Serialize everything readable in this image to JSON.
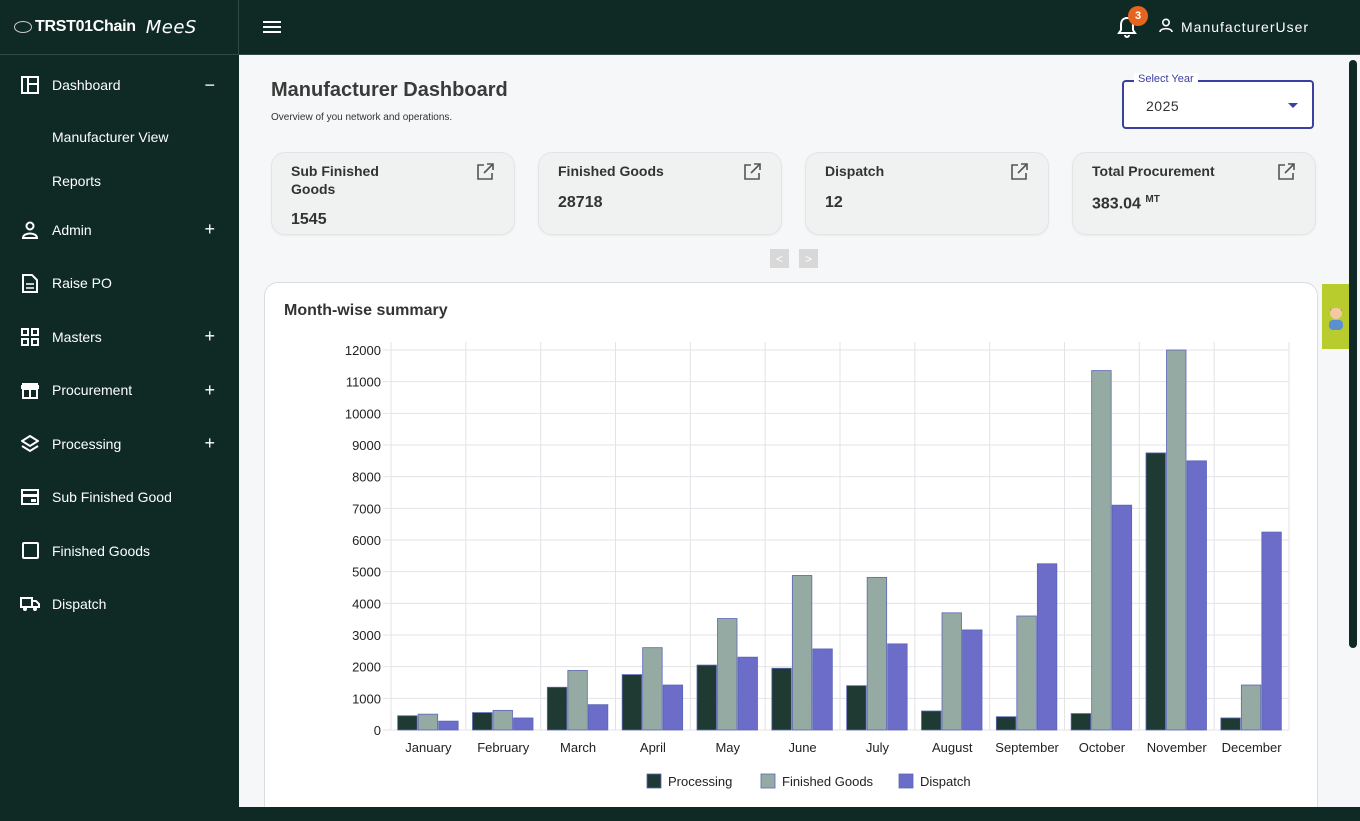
{
  "brand": {
    "logo_text": "TRST01Chain",
    "app_name": "MeeS"
  },
  "sidebar": {
    "items": [
      {
        "label": "Dashboard",
        "icon": "dashboard-icon",
        "toggle": "−"
      },
      {
        "label": "Manufacturer View"
      },
      {
        "label": "Reports"
      },
      {
        "label": "Admin",
        "icon": "person-icon",
        "toggle": "+"
      },
      {
        "label": "Raise PO",
        "icon": "document-icon"
      },
      {
        "label": "Masters",
        "icon": "grid-icon",
        "toggle": "+"
      },
      {
        "label": "Procurement",
        "icon": "store-icon",
        "toggle": "+"
      },
      {
        "label": "Processing",
        "icon": "layers-icon",
        "toggle": "+"
      },
      {
        "label": "Sub Finished Good",
        "icon": "card-icon"
      },
      {
        "label": "Finished Goods",
        "icon": "square-icon"
      },
      {
        "label": "Dispatch",
        "icon": "truck-icon"
      }
    ]
  },
  "topbar": {
    "notification_count": "3",
    "username": "ManufacturerUser"
  },
  "page": {
    "title": "Manufacturer Dashboard",
    "subtitle": "Overview of you network and operations.",
    "year_select": {
      "label": "Select Year",
      "value": "2025"
    }
  },
  "cards": [
    {
      "title": "Sub Finished Goods",
      "value": "1545",
      "unit": ""
    },
    {
      "title": "Finished Goods",
      "value": "28718",
      "unit": ""
    },
    {
      "title": "Dispatch",
      "value": "12",
      "unit": ""
    },
    {
      "title": "Total Procurement",
      "value": "383.04",
      "unit": "MT"
    }
  ],
  "pager": {
    "prev": "<",
    "next": ">"
  },
  "chart": {
    "title": "Month-wise summary"
  },
  "colors": {
    "processing": "#1e3a32",
    "finished_goods": "#95aaa3",
    "dispatch": "#6b6dc8",
    "accent": "#3b3f9e",
    "sidebar": "#0f2a24"
  },
  "chart_data": {
    "type": "bar",
    "categories": [
      "January",
      "February",
      "March",
      "April",
      "May",
      "June",
      "July",
      "August",
      "September",
      "October",
      "November",
      "December"
    ],
    "series": [
      {
        "name": "Processing",
        "values": [
          450,
          550,
          1350,
          1750,
          2050,
          1950,
          1400,
          600,
          420,
          520,
          8750,
          380
        ]
      },
      {
        "name": "Finished Goods",
        "values": [
          500,
          620,
          1880,
          2600,
          3520,
          4880,
          4820,
          3700,
          3600,
          11350,
          12500,
          1420
        ]
      },
      {
        "name": "Dispatch",
        "values": [
          280,
          380,
          800,
          1420,
          2300,
          2560,
          2720,
          3160,
          5250,
          7100,
          8500,
          6250
        ]
      }
    ],
    "ylim": [
      0,
      12000
    ],
    "yticks": [
      0,
      1000,
      2000,
      3000,
      4000,
      5000,
      6000,
      7000,
      8000,
      9000,
      10000,
      11000,
      12000
    ],
    "grid": true,
    "legend_position": "bottom"
  }
}
